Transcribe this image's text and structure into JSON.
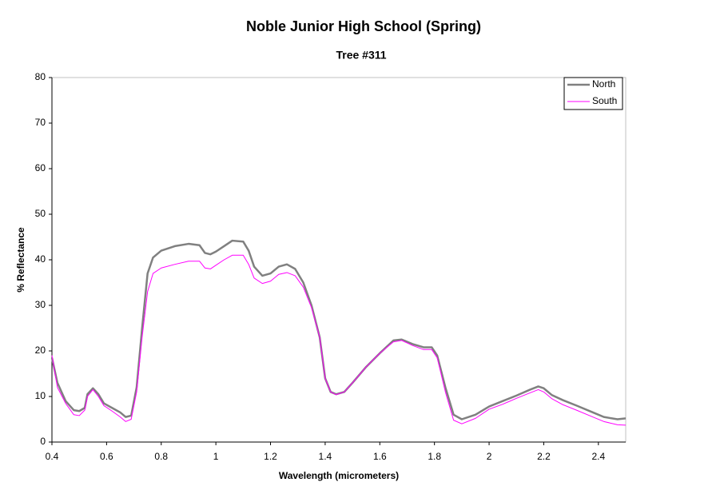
{
  "chart_data": {
    "type": "line",
    "title": "Noble Junior High School (Spring)",
    "subtitle": "Tree #311",
    "x_label": "Wavelength (micrometers)",
    "y_label": "% Reflectance",
    "x": [
      0.4,
      0.42,
      0.45,
      0.48,
      0.5,
      0.52,
      0.53,
      0.55,
      0.57,
      0.59,
      0.62,
      0.65,
      0.67,
      0.69,
      0.71,
      0.73,
      0.75,
      0.77,
      0.8,
      0.85,
      0.9,
      0.94,
      0.96,
      0.98,
      1.0,
      1.03,
      1.06,
      1.1,
      1.12,
      1.14,
      1.17,
      1.2,
      1.23,
      1.26,
      1.29,
      1.32,
      1.35,
      1.38,
      1.4,
      1.42,
      1.44,
      1.47,
      1.5,
      1.55,
      1.6,
      1.65,
      1.68,
      1.72,
      1.76,
      1.79,
      1.81,
      1.84,
      1.87,
      1.9,
      1.95,
      2.0,
      2.05,
      2.1,
      2.15,
      2.18,
      2.2,
      2.23,
      2.27,
      2.32,
      2.38,
      2.42,
      2.47,
      2.5
    ],
    "series": [
      {
        "name": "North",
        "color": "#808080",
        "width": 2.5,
        "values": [
          18.5,
          13,
          9,
          7,
          6.8,
          7.5,
          10.5,
          11.8,
          10.5,
          8.5,
          7.5,
          6.5,
          5.5,
          5.8,
          12,
          25,
          37,
          40.5,
          42,
          43,
          43.5,
          43.2,
          41.5,
          41.2,
          41.8,
          43,
          44.2,
          44,
          42,
          38.5,
          36.5,
          37,
          38.5,
          39,
          38,
          35,
          30,
          23,
          14,
          11,
          10.5,
          11,
          13,
          16.5,
          19.5,
          22.3,
          22.5,
          21.5,
          20.8,
          20.8,
          19,
          12,
          6,
          5,
          6,
          7.8,
          9,
          10.2,
          11.5,
          12.2,
          11.8,
          10.3,
          9.2,
          8,
          6.5,
          5.5,
          5,
          5.2
        ]
      },
      {
        "name": "South",
        "color": "#ff00ff",
        "width": 1,
        "values": [
          19,
          12,
          8.5,
          6,
          5.8,
          7,
          10,
          11.5,
          10,
          8,
          6.8,
          5.5,
          4.5,
          5,
          11,
          23,
          33,
          37,
          38.2,
          39,
          39.7,
          39.7,
          38.2,
          38,
          38.8,
          40,
          41,
          41,
          39,
          36,
          34.8,
          35.3,
          36.8,
          37.2,
          36.5,
          34,
          29.5,
          23,
          14,
          11,
          10.4,
          11,
          13,
          16.5,
          19.5,
          22,
          22.3,
          21.2,
          20.3,
          20.3,
          18.5,
          11,
          4.8,
          4,
          5.2,
          7.2,
          8.3,
          9.6,
          10.8,
          11.5,
          11,
          9.5,
          8.2,
          7,
          5.5,
          4.5,
          3.8,
          3.7
        ]
      }
    ],
    "xlim": [
      0.4,
      2.5
    ],
    "xticks": [
      0.4,
      0.6,
      0.8,
      1,
      1.2,
      1.4,
      1.6,
      1.8,
      2,
      2.2,
      2.4
    ],
    "ylim": [
      0,
      80
    ],
    "yticks": [
      0,
      10,
      20,
      30,
      40,
      50,
      60,
      70,
      80
    ],
    "grid": false,
    "legend": "top-right"
  }
}
